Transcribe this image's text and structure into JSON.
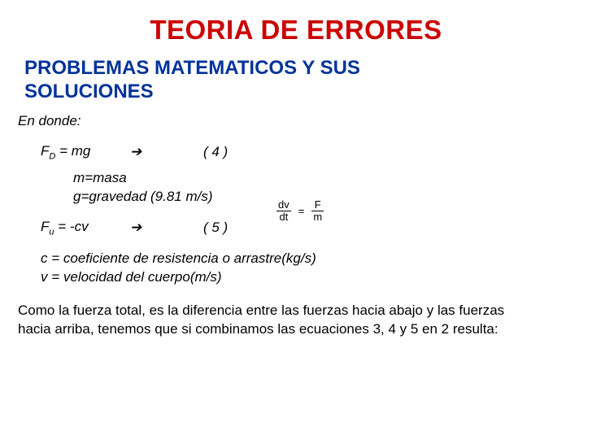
{
  "colors": {
    "title": "#cc0000",
    "subtitle": "#003399",
    "text": "#000000",
    "background": "#ffffff"
  },
  "page": {
    "title": "TEORIA DE ERRORES",
    "subtitle_line1": "PROBLEMAS MATEMATICOS Y SUS",
    "subtitle_line2": "SOLUCIONES"
  },
  "body": {
    "en_donde": "En donde:",
    "eq4_lhs_pre": "F",
    "eq4_lhs_sub": "D",
    "eq4_lhs_post": " = mg",
    "eq4_arrow": "➔",
    "eq4_num": "( 4 )",
    "m_def": "m=masa",
    "g_def": "g=gravedad (9.81 m/s)",
    "eq5_lhs_pre": "F",
    "eq5_lhs_sub": "u",
    "eq5_lhs_post": "  =  -cv",
    "eq5_arrow": "➔",
    "eq5_num": "( 5 )",
    "c_def": "c = coeficiente de resistencia o arrastre(kg/s)",
    "v_def": "v = velocidad del cuerpo(m/s)",
    "bottom_line1": "Como la fuerza total, es la diferencia entre las fuerzas hacia abajo y las fuerzas",
    "bottom_line2": "hacia arriba, tenemos que si combinamos las ecuaciones 3, 4 y 5 en 2 resulta:"
  },
  "fraction": {
    "top_left": "dv",
    "bot_left": "dt",
    "eq": "=",
    "top_right": "F",
    "bot_right": "m"
  }
}
